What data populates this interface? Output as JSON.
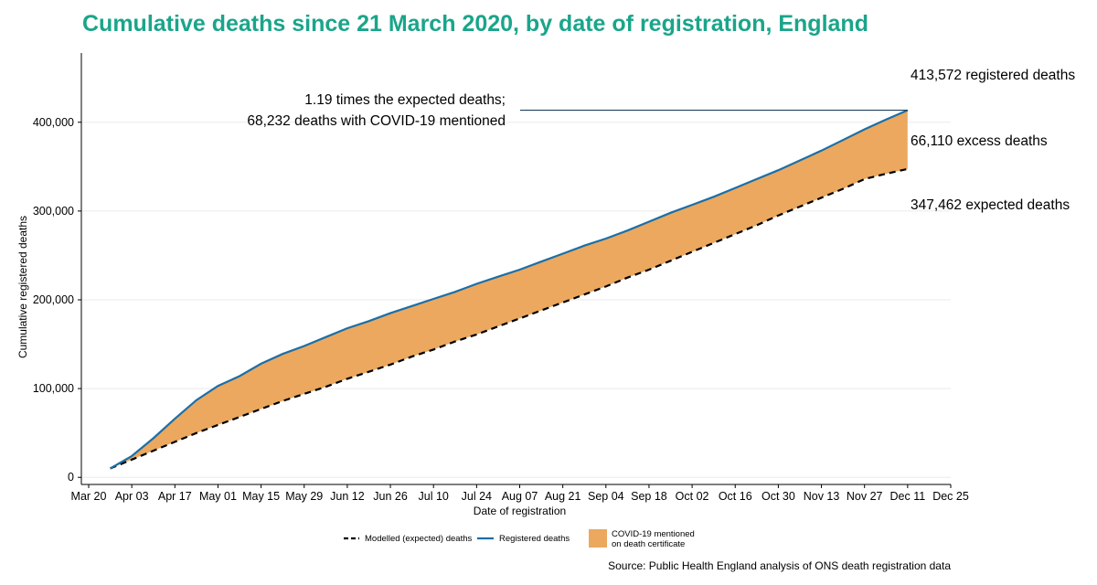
{
  "chart_data": {
    "type": "area",
    "title": "Cumulative deaths since 21 March 2020, by date of registration, England",
    "xlabel": "Date of registration",
    "ylabel": "Cumulative registered deaths",
    "x_tick_labels": [
      "Mar 20",
      "Apr 03",
      "Apr 17",
      "May 01",
      "May 15",
      "May 29",
      "Jun 12",
      "Jun 26",
      "Jul 10",
      "Jul 24",
      "Aug 07",
      "Aug 21",
      "Sep 04",
      "Sep 18",
      "Oct 02",
      "Oct 16",
      "Oct 30",
      "Nov 13",
      "Nov 27",
      "Dec 11",
      "Dec 25"
    ],
    "y_ticks": [
      0,
      100000,
      200000,
      300000,
      400000
    ],
    "y_tick_labels": [
      "0",
      "100,000",
      "200,000",
      "300,000",
      "400,000"
    ],
    "ylim": [
      -8000,
      478000
    ],
    "grid": "horizontal",
    "colors": {
      "registered": "#1a6fa8",
      "expected": "#000000",
      "covid_fill": "#eba85e",
      "title": "#1aa58a"
    },
    "series": [
      {
        "name": "Registered deaths",
        "style": "solid",
        "points": [
          [
            "2020-03-27",
            10000
          ],
          [
            "2020-04-03",
            24000
          ],
          [
            "2020-04-10",
            44000
          ],
          [
            "2020-04-17",
            66000
          ],
          [
            "2020-04-24",
            87000
          ],
          [
            "2020-05-01",
            103000
          ],
          [
            "2020-05-08",
            114000
          ],
          [
            "2020-05-15",
            128000
          ],
          [
            "2020-05-22",
            139000
          ],
          [
            "2020-05-29",
            148000
          ],
          [
            "2020-06-05",
            158000
          ],
          [
            "2020-06-12",
            168000
          ],
          [
            "2020-06-19",
            176000
          ],
          [
            "2020-06-26",
            185000
          ],
          [
            "2020-07-03",
            193000
          ],
          [
            "2020-07-10",
            201000
          ],
          [
            "2020-07-17",
            209000
          ],
          [
            "2020-07-24",
            218000
          ],
          [
            "2020-07-31",
            226000
          ],
          [
            "2020-08-07",
            234000
          ],
          [
            "2020-08-14",
            243000
          ],
          [
            "2020-08-21",
            252000
          ],
          [
            "2020-08-28",
            261000
          ],
          [
            "2020-09-04",
            269000
          ],
          [
            "2020-09-11",
            278000
          ],
          [
            "2020-09-18",
            288000
          ],
          [
            "2020-09-25",
            298000
          ],
          [
            "2020-10-02",
            307000
          ],
          [
            "2020-10-09",
            316000
          ],
          [
            "2020-10-16",
            326000
          ],
          [
            "2020-10-23",
            336000
          ],
          [
            "2020-10-30",
            346000
          ],
          [
            "2020-11-06",
            357000
          ],
          [
            "2020-11-13",
            368000
          ],
          [
            "2020-11-20",
            380000
          ],
          [
            "2020-11-27",
            392000
          ],
          [
            "2020-12-04",
            403000
          ],
          [
            "2020-12-11",
            413572
          ]
        ]
      },
      {
        "name": "Modelled (expected) deaths",
        "style": "dashed",
        "points": [
          [
            "2020-03-27",
            10000
          ],
          [
            "2020-04-03",
            20000
          ],
          [
            "2020-04-10",
            30000
          ],
          [
            "2020-04-17",
            40000
          ],
          [
            "2020-04-24",
            50000
          ],
          [
            "2020-05-01",
            59000
          ],
          [
            "2020-05-08",
            68000
          ],
          [
            "2020-05-15",
            77000
          ],
          [
            "2020-05-22",
            86000
          ],
          [
            "2020-05-29",
            94000
          ],
          [
            "2020-06-05",
            102000
          ],
          [
            "2020-06-12",
            111000
          ],
          [
            "2020-06-19",
            119000
          ],
          [
            "2020-06-26",
            127000
          ],
          [
            "2020-07-03",
            136000
          ],
          [
            "2020-07-10",
            144000
          ],
          [
            "2020-07-17",
            153000
          ],
          [
            "2020-07-24",
            161000
          ],
          [
            "2020-07-31",
            170000
          ],
          [
            "2020-08-07",
            179000
          ],
          [
            "2020-08-14",
            188000
          ],
          [
            "2020-08-21",
            197000
          ],
          [
            "2020-08-28",
            206000
          ],
          [
            "2020-09-04",
            215000
          ],
          [
            "2020-09-11",
            225000
          ],
          [
            "2020-09-18",
            234000
          ],
          [
            "2020-09-25",
            244000
          ],
          [
            "2020-10-02",
            254000
          ],
          [
            "2020-10-09",
            264000
          ],
          [
            "2020-10-16",
            274000
          ],
          [
            "2020-10-23",
            284000
          ],
          [
            "2020-10-30",
            295000
          ],
          [
            "2020-11-06",
            305000
          ],
          [
            "2020-11-13",
            315000
          ],
          [
            "2020-11-20",
            325000
          ],
          [
            "2020-11-27",
            336000
          ],
          [
            "2020-12-04",
            342000
          ],
          [
            "2020-12-11",
            347462
          ]
        ]
      }
    ],
    "fill_between": {
      "name": "COVID-19 mentioned on death certificate",
      "upper": "Registered deaths",
      "lower": "Modelled (expected) deaths"
    },
    "annotations": {
      "registered": "413,572 registered deaths",
      "excess": "66,110 excess deaths",
      "expected": "347,462 expected deaths",
      "ratio_line1": "1.19 times the expected deaths;",
      "ratio_line2": "68,232 deaths with COVID-19 mentioned"
    },
    "legend": {
      "position": "bottom",
      "items": [
        {
          "label": "Modelled (expected) deaths",
          "kind": "dashed"
        },
        {
          "label": "Registered deaths",
          "kind": "line"
        },
        {
          "label_line1": "COVID-19 mentioned",
          "label_line2": "on death certificate",
          "kind": "fill"
        }
      ]
    },
    "source": "Source: Public Health England analysis of ONS death registration data"
  }
}
